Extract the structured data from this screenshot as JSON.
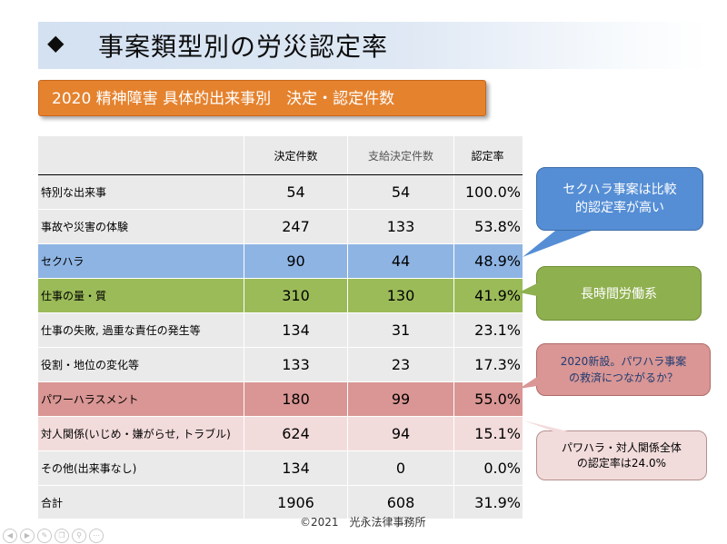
{
  "title": {
    "bullet": "◆",
    "text": "事案類型別の労災認定率"
  },
  "subtitle": "2020 精神障害 具体的出来事別　決定・認定件数",
  "table": {
    "headers": [
      "",
      "決定件数",
      "支給決定件数",
      "認定率"
    ],
    "rows": [
      {
        "label": "特別な出来事",
        "decided": "54",
        "approved": "54",
        "rate": "100.0%",
        "highlight": "none"
      },
      {
        "label": "事故や災害の体験",
        "decided": "247",
        "approved": "133",
        "rate": "53.8%",
        "highlight": "none"
      },
      {
        "label": "セクハラ",
        "decided": "90",
        "approved": "44",
        "rate": "48.9%",
        "highlight": "blue"
      },
      {
        "label": "仕事の量・質",
        "decided": "310",
        "approved": "130",
        "rate": "41.9%",
        "highlight": "green"
      },
      {
        "label": "仕事の失敗, 過重な責任の発生等",
        "decided": "134",
        "approved": "31",
        "rate": "23.1%",
        "highlight": "none"
      },
      {
        "label": "役割・地位の変化等",
        "decided": "133",
        "approved": "23",
        "rate": "17.3%",
        "highlight": "none"
      },
      {
        "label": "パワーハラスメント",
        "decided": "180",
        "approved": "99",
        "rate": "55.0%",
        "highlight": "red"
      },
      {
        "label": "対人関係(いじめ・嫌がらせ, トラブル)",
        "decided": "624",
        "approved": "94",
        "rate": "15.1%",
        "highlight": "pink"
      },
      {
        "label": "その他(出来事なし)",
        "decided": "134",
        "approved": "0",
        "rate": "0.0%",
        "highlight": "none"
      }
    ],
    "total": {
      "label": "合計",
      "decided": "1906",
      "approved": "608",
      "rate": "31.9%"
    }
  },
  "callouts": {
    "sexual_harassment": {
      "line1": "セクハラ事案は比較",
      "line2": "的認定率が高い",
      "color": "#558ed5"
    },
    "long_hours": {
      "text": "長時間労働系",
      "color": "#8fb04f"
    },
    "power_harassment": {
      "line1": "2020新設。パワハラ事案",
      "line2": "の救済につながるか？",
      "color": "#d99694"
    },
    "combined": {
      "line1": "パワハラ・対人関係全体",
      "line2": "の認定率は24.0%",
      "color": "#f2dcdb"
    }
  },
  "footer": "©2021　光永法律事務所",
  "toolbar_icons": [
    "back-icon",
    "forward-icon",
    "pen-icon",
    "copy-icon",
    "zoom-icon",
    "more-icon"
  ],
  "colors": {
    "title_bg": "#d3e1f1",
    "subtitle_bg": "#e5822e",
    "row_gray": "#eaeaea",
    "row_blue": "#8eb4e3",
    "row_green": "#9bbb59",
    "row_red": "#d99694",
    "row_pink": "#f2dcdb"
  }
}
